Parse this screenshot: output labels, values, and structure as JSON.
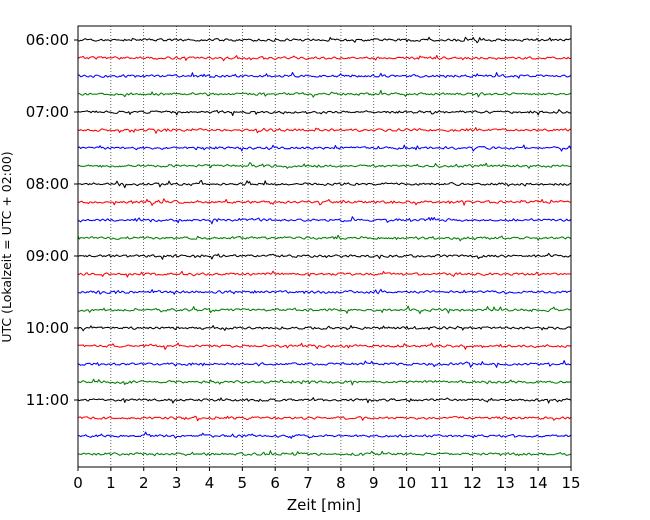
{
  "chart_data": {
    "type": "line",
    "title": "",
    "xlabel": "Zeit  [min]",
    "ylabel": "UTC (Lokalzeit = UTC + 02:00)",
    "xlim": [
      0,
      15
    ],
    "x_ticks": [
      "0",
      "1",
      "2",
      "3",
      "4",
      "5",
      "6",
      "7",
      "8",
      "9",
      "10",
      "11",
      "12",
      "13",
      "14",
      "15"
    ],
    "y_ticks": [
      "06:00",
      "07:00",
      "08:00",
      "09:00",
      "10:00",
      "11:00"
    ],
    "grid": "vertical dotted",
    "trace_minutes": 15,
    "series_colors": [
      "#000000",
      "#ff0000",
      "#0000ff",
      "#008000"
    ],
    "traces": [
      {
        "start": "06:00"
      },
      {
        "start": "06:15"
      },
      {
        "start": "06:30"
      },
      {
        "start": "06:45"
      },
      {
        "start": "07:00"
      },
      {
        "start": "07:15"
      },
      {
        "start": "07:30"
      },
      {
        "start": "07:45"
      },
      {
        "start": "08:00"
      },
      {
        "start": "08:15"
      },
      {
        "start": "08:30"
      },
      {
        "start": "08:45"
      },
      {
        "start": "09:00"
      },
      {
        "start": "09:15"
      },
      {
        "start": "09:30"
      },
      {
        "start": "09:45"
      },
      {
        "start": "10:00"
      },
      {
        "start": "10:15"
      },
      {
        "start": "10:30"
      },
      {
        "start": "10:45"
      },
      {
        "start": "11:00"
      },
      {
        "start": "11:15"
      },
      {
        "start": "11:30"
      },
      {
        "start": "11:45"
      }
    ]
  }
}
